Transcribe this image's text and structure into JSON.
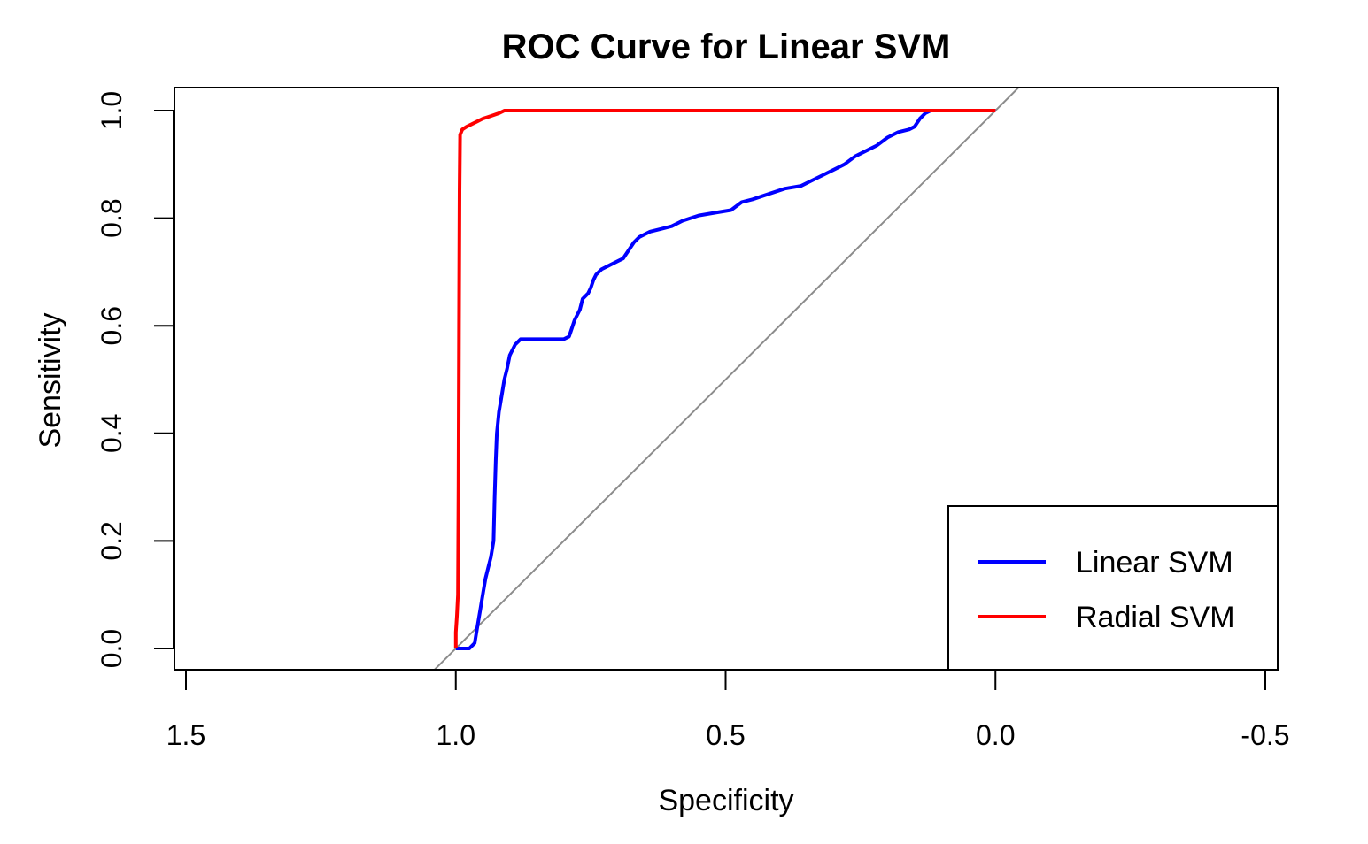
{
  "chart_data": {
    "type": "line",
    "title": "ROC Curve for Linear SVM",
    "xlabel": "Specificity",
    "ylabel": "Sensitivity",
    "xlim": [
      1.5,
      -0.5
    ],
    "ylim": [
      0.0,
      1.0
    ],
    "x_reversed": true,
    "x_ticks": [
      1.5,
      1.0,
      0.5,
      0.0,
      -0.5
    ],
    "x_tick_labels": [
      "1.5",
      "1.0",
      "0.5",
      "0.0",
      "-0.5"
    ],
    "y_ticks": [
      0.0,
      0.2,
      0.4,
      0.6,
      0.8,
      1.0
    ],
    "y_tick_labels": [
      "0.0",
      "0.2",
      "0.4",
      "0.6",
      "0.8",
      "1.0"
    ],
    "grid": false,
    "legend_position": "bottom-right",
    "reference_line": {
      "from": [
        1.0,
        0.0
      ],
      "to": [
        0.0,
        1.0
      ],
      "color": "#8c8c8c"
    },
    "series": [
      {
        "name": "Linear SVM",
        "color": "#0000ff",
        "points": [
          [
            1.0,
            0.0
          ],
          [
            0.975,
            0.0
          ],
          [
            0.965,
            0.01
          ],
          [
            0.96,
            0.04
          ],
          [
            0.955,
            0.07
          ],
          [
            0.95,
            0.1
          ],
          [
            0.945,
            0.13
          ],
          [
            0.94,
            0.15
          ],
          [
            0.935,
            0.17
          ],
          [
            0.93,
            0.2
          ],
          [
            0.928,
            0.28
          ],
          [
            0.926,
            0.35
          ],
          [
            0.924,
            0.4
          ],
          [
            0.92,
            0.44
          ],
          [
            0.915,
            0.47
          ],
          [
            0.91,
            0.5
          ],
          [
            0.905,
            0.52
          ],
          [
            0.9,
            0.545
          ],
          [
            0.895,
            0.555
          ],
          [
            0.89,
            0.565
          ],
          [
            0.88,
            0.575
          ],
          [
            0.86,
            0.575
          ],
          [
            0.84,
            0.575
          ],
          [
            0.8,
            0.575
          ],
          [
            0.79,
            0.58
          ],
          [
            0.785,
            0.595
          ],
          [
            0.78,
            0.61
          ],
          [
            0.77,
            0.63
          ],
          [
            0.765,
            0.65
          ],
          [
            0.755,
            0.66
          ],
          [
            0.75,
            0.67
          ],
          [
            0.745,
            0.685
          ],
          [
            0.74,
            0.695
          ],
          [
            0.73,
            0.705
          ],
          [
            0.72,
            0.71
          ],
          [
            0.7,
            0.72
          ],
          [
            0.69,
            0.725
          ],
          [
            0.68,
            0.74
          ],
          [
            0.67,
            0.755
          ],
          [
            0.66,
            0.765
          ],
          [
            0.64,
            0.775
          ],
          [
            0.62,
            0.78
          ],
          [
            0.6,
            0.785
          ],
          [
            0.58,
            0.795
          ],
          [
            0.55,
            0.805
          ],
          [
            0.52,
            0.81
          ],
          [
            0.49,
            0.815
          ],
          [
            0.47,
            0.83
          ],
          [
            0.45,
            0.835
          ],
          [
            0.42,
            0.845
          ],
          [
            0.39,
            0.855
          ],
          [
            0.36,
            0.86
          ],
          [
            0.34,
            0.87
          ],
          [
            0.32,
            0.88
          ],
          [
            0.3,
            0.89
          ],
          [
            0.28,
            0.9
          ],
          [
            0.26,
            0.915
          ],
          [
            0.24,
            0.925
          ],
          [
            0.22,
            0.935
          ],
          [
            0.2,
            0.95
          ],
          [
            0.18,
            0.96
          ],
          [
            0.16,
            0.965
          ],
          [
            0.15,
            0.97
          ],
          [
            0.14,
            0.985
          ],
          [
            0.13,
            0.995
          ],
          [
            0.12,
            1.0
          ],
          [
            0.1,
            1.0
          ],
          [
            0.0,
            1.0
          ]
        ]
      },
      {
        "name": "Radial SVM",
        "color": "#ff0000",
        "points": [
          [
            1.0,
            0.0
          ],
          [
            1.0,
            0.03
          ],
          [
            0.998,
            0.06
          ],
          [
            0.996,
            0.1
          ],
          [
            0.995,
            0.3
          ],
          [
            0.994,
            0.6
          ],
          [
            0.993,
            0.85
          ],
          [
            0.992,
            0.955
          ],
          [
            0.988,
            0.965
          ],
          [
            0.98,
            0.97
          ],
          [
            0.97,
            0.975
          ],
          [
            0.96,
            0.98
          ],
          [
            0.95,
            0.985
          ],
          [
            0.935,
            0.99
          ],
          [
            0.92,
            0.995
          ],
          [
            0.91,
            1.0
          ],
          [
            0.8,
            1.0
          ],
          [
            0.5,
            1.0
          ],
          [
            0.2,
            1.0
          ],
          [
            0.0,
            1.0
          ]
        ]
      }
    ]
  }
}
